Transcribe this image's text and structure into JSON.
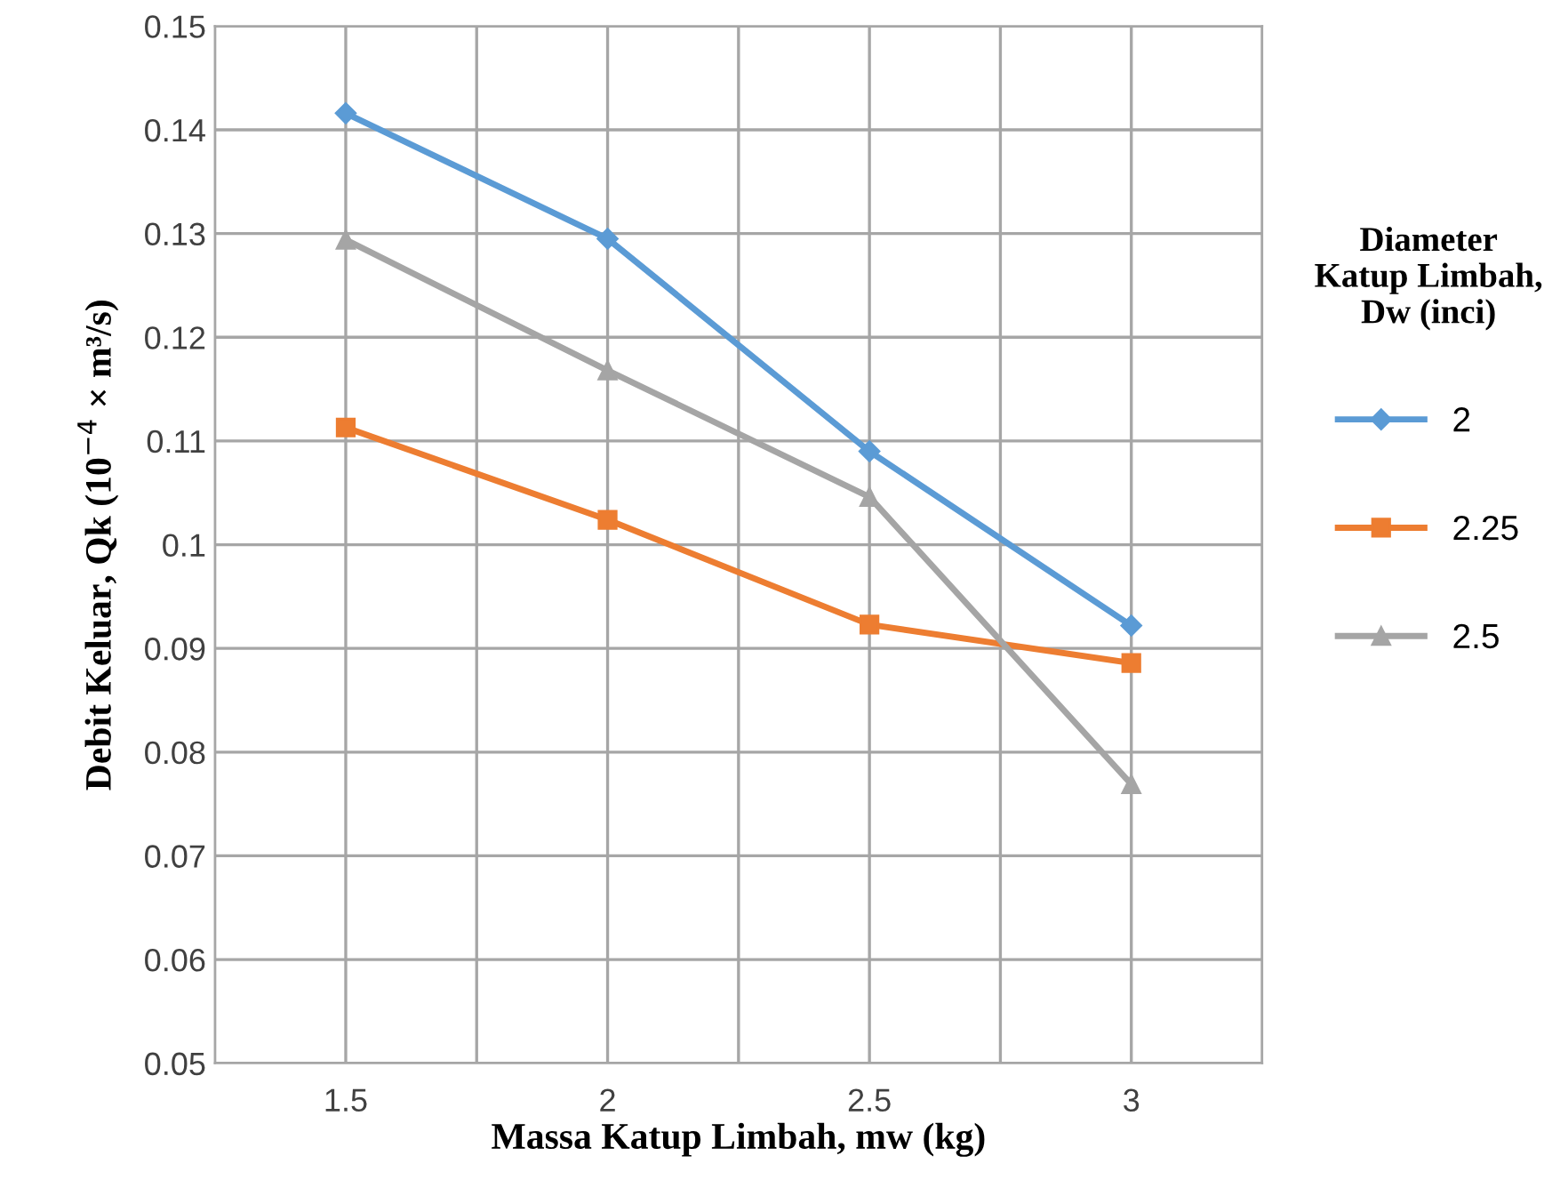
{
  "chart_data": {
    "type": "line",
    "xlabel": "Massa Katup Limbah, mw (kg)",
    "ylabel": "Debit Keluar, Qk (10$^{−4}$ × m³/s)",
    "legend_title": "Diameter\nKatup Limbah,\nDw (inci)",
    "x": [
      1.5,
      2,
      2.5,
      3
    ],
    "series": [
      {
        "name": "2",
        "color": "#5b9bd5",
        "marker": "diamond",
        "values": [
          0.1416,
          0.1295,
          0.109,
          0.0922
        ]
      },
      {
        "name": "2.25",
        "color": "#ed7d31",
        "marker": "square",
        "values": [
          0.1113,
          0.1024,
          0.0923,
          0.0886
        ]
      },
      {
        "name": "2.5",
        "color": "#a5a5a5",
        "marker": "triangle",
        "values": [
          0.1294,
          0.1168,
          0.1046,
          0.0769
        ]
      }
    ],
    "xlim": [
      1.25,
      3.25
    ],
    "xticks": [
      {
        "value": 1.25,
        "label": null
      },
      1.5,
      {
        "value": 1.75,
        "label": null
      },
      2,
      {
        "value": 2.25,
        "label": null
      },
      2.5,
      {
        "value": 2.75,
        "label": null
      },
      3,
      {
        "value": 3.25,
        "label": null
      }
    ],
    "ylim": [
      0.05,
      0.15
    ],
    "yticks": [
      0.05,
      0.06,
      0.07,
      0.08,
      0.09,
      0.1,
      0.11,
      0.12,
      0.13,
      0.14,
      0.15
    ],
    "grid": true,
    "legend": "right",
    "line_style": "solid"
  }
}
